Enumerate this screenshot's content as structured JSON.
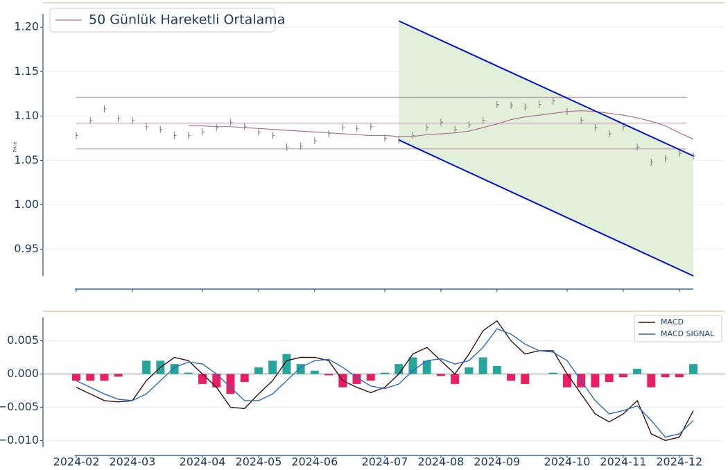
{
  "chart_data": [
    {
      "type": "price",
      "y_label": "Price",
      "ylim": [
        0.92,
        1.215
      ],
      "yticks": [
        0.95,
        {
          "value": 1.0,
          "label": "1.00"
        },
        1.05,
        {
          "value": 1.1,
          "label": "1.10"
        },
        1.15,
        {
          "value": 1.2,
          "label": "1.20"
        }
      ],
      "grid": true,
      "legend": "upper left",
      "color": "#888888",
      "values": [
        1.078,
        1.095,
        1.108,
        1.097,
        1.095,
        1.088,
        1.085,
        1.078,
        1.078,
        1.082,
        1.087,
        1.093,
        1.088,
        1.082,
        1.078,
        1.065,
        1.066,
        1.072,
        1.08,
        1.087,
        1.086,
        1.088,
        1.075,
        1.073,
        1.078,
        1.087,
        1.093,
        1.085,
        1.09,
        1.095,
        1.113,
        1.112,
        1.11,
        1.113,
        1.117,
        1.105,
        1.095,
        1.087,
        1.08,
        1.088,
        1.065,
        1.048,
        1.052,
        1.058,
        1.055
      ],
      "moving_average": {
        "name": "50 Günlük Hareketli Ortalama",
        "color": "#b07090",
        "values": [
          null,
          null,
          null,
          null,
          null,
          null,
          null,
          null,
          1.089,
          1.089,
          1.088,
          1.088,
          1.087,
          1.086,
          1.085,
          1.084,
          1.083,
          1.082,
          1.081,
          1.08,
          1.079,
          1.078,
          1.078,
          1.077,
          1.077,
          1.079,
          1.08,
          1.081,
          1.083,
          1.087,
          1.091,
          1.096,
          1.099,
          1.101,
          1.103,
          1.105,
          1.106,
          1.105,
          1.103,
          1.101,
          1.098,
          1.094,
          1.089,
          1.081,
          1.074
        ]
      },
      "levels": [
        1.121,
        1.092,
        1.063
      ],
      "level_color": "#c9a0b4",
      "channel": {
        "start": 23,
        "end": 44,
        "upper": [
          1.207,
          1.055
        ],
        "lower": [
          1.073,
          0.92
        ],
        "color": "#0010d0",
        "fill": "#e2f0da"
      }
    },
    {
      "type": "macd",
      "ylim": [
        -0.011,
        0.0085
      ],
      "yticks": [
        0.005,
        {
          "value": 0,
          "label": "0.000"
        },
        {
          "value": -0.005,
          "label": "−0.005"
        },
        {
          "value": -0.01,
          "label": "−0.010"
        }
      ],
      "grid": true,
      "legend": "upper right",
      "categories": [
        "2024-02",
        null,
        null,
        null,
        "2024-03",
        null,
        null,
        null,
        null,
        "2024-04",
        null,
        null,
        null,
        "2024-05",
        null,
        null,
        null,
        "2024-06",
        null,
        null,
        null,
        null,
        "2024-07",
        null,
        null,
        null,
        "2024-08",
        null,
        null,
        null,
        "2024-09",
        null,
        null,
        null,
        null,
        "2024-10",
        null,
        null,
        null,
        "2024-11",
        null,
        null,
        null,
        "2024-12",
        null
      ],
      "series": [
        {
          "name": "MACD",
          "color": "#3a0a0a",
          "values": [
            -0.002,
            -0.003,
            -0.004,
            -0.0042,
            -0.004,
            -0.001,
            0.001,
            0.0025,
            0.002,
            0.0,
            -0.002,
            -0.005,
            -0.0052,
            -0.003,
            -0.001,
            0.002,
            0.0025,
            0.0025,
            0.002,
            -0.001,
            -0.002,
            -0.0028,
            -0.002,
            0.0,
            0.003,
            0.004,
            0.002,
            0.0,
            0.003,
            0.0065,
            0.008,
            0.005,
            0.003,
            0.0035,
            0.0035,
            0.0,
            -0.003,
            -0.006,
            -0.0072,
            -0.006,
            -0.004,
            -0.009,
            -0.01,
            -0.0095,
            -0.0055
          ]
        },
        {
          "name": "MACD SIGNAL",
          "color": "#2a6ac0",
          "values": [
            -0.001,
            -0.002,
            -0.003,
            -0.0038,
            -0.004,
            -0.003,
            -0.001,
            0.001,
            0.0018,
            0.0015,
            0.0,
            -0.002,
            -0.004,
            -0.004,
            -0.003,
            -0.001,
            0.001,
            0.002,
            0.0022,
            0.001,
            -0.0005,
            -0.0018,
            -0.0022,
            -0.0015,
            0.0005,
            0.002,
            0.0023,
            0.0015,
            0.002,
            0.004,
            0.0068,
            0.006,
            0.0045,
            0.0035,
            0.0033,
            0.002,
            -0.001,
            -0.004,
            -0.006,
            -0.0055,
            -0.0048,
            -0.007,
            -0.0095,
            -0.009,
            -0.007
          ]
        }
      ],
      "histogram": {
        "positive_color": "#26a69a",
        "negative_color": "#e91e63",
        "values": [
          -0.001,
          -0.001,
          -0.001,
          -0.0004,
          0.0,
          0.002,
          0.002,
          0.0015,
          0.0002,
          -0.0015,
          -0.002,
          -0.003,
          -0.0012,
          0.001,
          0.002,
          0.003,
          0.0015,
          0.0005,
          -0.0002,
          -0.002,
          -0.0015,
          -0.001,
          0.0002,
          0.0015,
          0.0025,
          0.002,
          -0.0003,
          -0.0015,
          0.001,
          0.0025,
          0.0012,
          -0.001,
          -0.0015,
          0.0,
          0.0002,
          -0.002,
          -0.002,
          -0.002,
          -0.0012,
          -0.0005,
          0.0008,
          -0.002,
          -0.0005,
          -0.0005,
          0.0015
        ]
      }
    }
  ]
}
